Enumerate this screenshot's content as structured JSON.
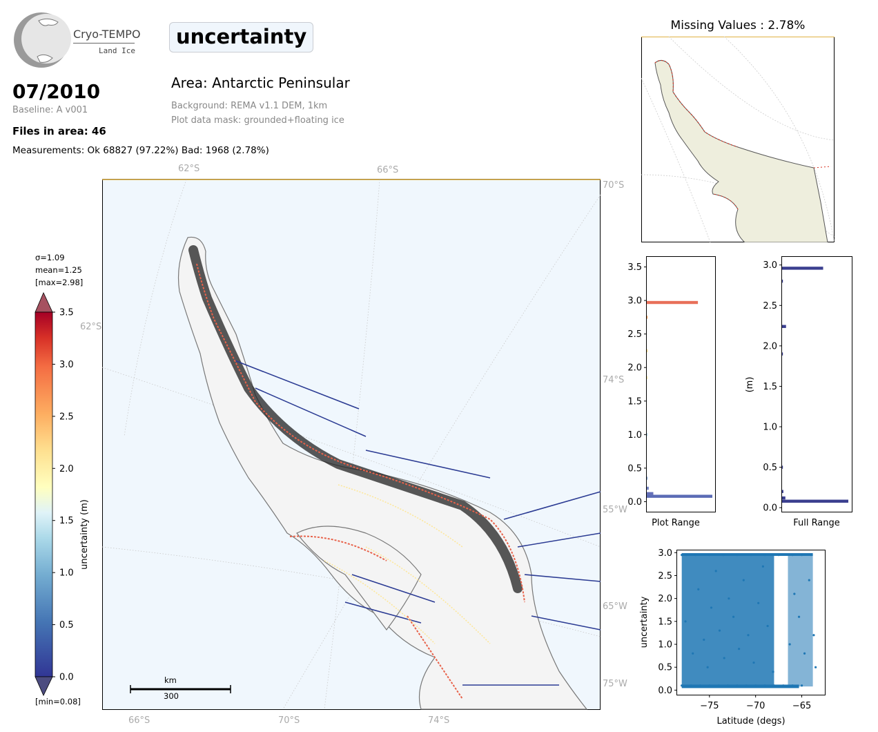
{
  "logo": {
    "name": "Cryo-TEMPO",
    "sub": "Land Ice"
  },
  "header": {
    "variable": "uncertainty",
    "date": "07/2010",
    "baseline": "Baseline: A v001",
    "files": "Files in area: 46",
    "measurements": "Measurements: Ok 68827 (97.22%) Bad: 1968 (2.78%)",
    "area": "Area: Antarctic Peninsular",
    "background": "Background: REMA v1.1 DEM, 1km",
    "mask": "Plot data mask: grounded+floating ice"
  },
  "inset": {
    "title": "Missing Values : 2.78%"
  },
  "main_map": {
    "gridlabels": [
      "62°S",
      "66°S",
      "70°S",
      "62°S",
      "74°S",
      "55°W",
      "65°W",
      "75°W",
      "66°S",
      "70°S",
      "74°S"
    ],
    "scalebar": {
      "unit": "km",
      "value": "300"
    }
  },
  "colorbar": {
    "label": "uncertainty (m)",
    "sigma": "σ=1.09",
    "mean": "mean=1.25",
    "max": "[max=2.98]",
    "min": "[min=0.08]",
    "ticks": [
      "0.0",
      "0.5",
      "1.0",
      "1.5",
      "2.0",
      "2.5",
      "3.0",
      "3.5"
    ]
  },
  "colors": {
    "accent_red": "#d7301f",
    "track_blue": "#2b3b93",
    "scatter_blue": "#1f77b4",
    "land": "#eeeedd",
    "ocean": "#f0f7fd"
  },
  "chart_data": [
    {
      "type": "bar",
      "orientation": "horizontal",
      "title": "",
      "xlabel": "Plot Range",
      "ylabel": "",
      "ylim": [
        -0.15,
        3.65
      ],
      "yticks": [
        "0.0",
        "0.5",
        "1.0",
        "1.5",
        "2.0",
        "2.5",
        "3.0",
        "3.5"
      ],
      "bins": [
        {
          "y": 0.08,
          "count": 100,
          "color": "#5b6bb5"
        },
        {
          "y": 0.12,
          "count": 10,
          "color": "#6570b8"
        },
        {
          "y": 0.2,
          "count": 3,
          "color": "#7080c0"
        },
        {
          "y": 0.35,
          "count": 1,
          "color": "#8aa8d4"
        },
        {
          "y": 1.0,
          "count": 0.5,
          "color": "#b7d9ea"
        },
        {
          "y": 1.85,
          "count": 0.4,
          "color": "#fbe9a8"
        },
        {
          "y": 2.25,
          "count": 0.4,
          "color": "#fcd989"
        },
        {
          "y": 2.75,
          "count": 0.4,
          "color": "#f3a25e"
        },
        {
          "y": 2.97,
          "count": 78,
          "color": "#e8705a"
        }
      ]
    },
    {
      "type": "bar",
      "orientation": "horizontal",
      "title": "",
      "xlabel": "Full Range",
      "ylabel": "(m)",
      "ylim": [
        -0.05,
        3.1
      ],
      "yticks": [
        "0.0",
        "0.5",
        "1.0",
        "1.5",
        "2.0",
        "2.5",
        "3.0"
      ],
      "bins": [
        {
          "y": 0.08,
          "count": 100
        },
        {
          "y": 0.12,
          "count": 5
        },
        {
          "y": 0.2,
          "count": 2
        },
        {
          "y": 0.5,
          "count": 1
        },
        {
          "y": 1.9,
          "count": 1
        },
        {
          "y": 2.24,
          "count": 6
        },
        {
          "y": 2.8,
          "count": 1
        },
        {
          "y": 2.96,
          "count": 62
        }
      ]
    },
    {
      "type": "scatter",
      "title": "",
      "xlabel": "Latitude (degs)",
      "ylabel": "uncertainty",
      "xlim": [
        -78.5,
        -62.5
      ],
      "ylim": [
        -0.1,
        3.05
      ],
      "xticks": [
        "−75",
        "−70",
        "−65"
      ],
      "yticks": [
        "0.0",
        "0.5",
        "1.0",
        "1.5",
        "2.0",
        "2.5",
        "3.0"
      ],
      "series": [
        {
          "points": [
            [
              -78.0,
              2.95
            ],
            [
              -77.5,
              2.95
            ],
            [
              -76.5,
              2.95
            ],
            [
              -75.0,
              2.95
            ],
            [
              -73.5,
              2.95
            ],
            [
              -72.0,
              2.95
            ],
            [
              -70.5,
              2.95
            ],
            [
              -69.0,
              2.95
            ],
            [
              -67.5,
              2.95
            ],
            [
              -66.0,
              2.95
            ],
            [
              -65.0,
              2.95
            ],
            [
              -64.0,
              2.95
            ],
            [
              -78.0,
              0.1
            ],
            [
              -77.0,
              0.1
            ],
            [
              -76.0,
              0.1
            ],
            [
              -75.0,
              0.1
            ],
            [
              -74.0,
              0.1
            ],
            [
              -73.0,
              0.1
            ],
            [
              -72.0,
              0.1
            ],
            [
              -71.0,
              0.1
            ],
            [
              -70.0,
              0.1
            ],
            [
              -69.0,
              0.1
            ],
            [
              -68.0,
              0.1
            ],
            [
              -67.0,
              0.1
            ],
            [
              -66.0,
              0.1
            ],
            [
              -65.0,
              0.1
            ],
            [
              -77.6,
              1.5
            ],
            [
              -76.8,
              0.8
            ],
            [
              -76.2,
              2.2
            ],
            [
              -75.6,
              1.1
            ],
            [
              -75.2,
              0.5
            ],
            [
              -74.8,
              1.8
            ],
            [
              -74.3,
              2.6
            ],
            [
              -73.9,
              1.3
            ],
            [
              -73.4,
              0.7
            ],
            [
              -72.9,
              2.0
            ],
            [
              -72.4,
              1.6
            ],
            [
              -71.8,
              0.9
            ],
            [
              -71.3,
              2.4
            ],
            [
              -70.8,
              1.2
            ],
            [
              -70.2,
              0.6
            ],
            [
              -69.7,
              1.9
            ],
            [
              -69.2,
              2.7
            ],
            [
              -68.7,
              1.4
            ],
            [
              -68.1,
              0.4
            ],
            [
              -66.3,
              1.0
            ],
            [
              -65.8,
              2.1
            ],
            [
              -65.3,
              1.6
            ],
            [
              -64.7,
              0.8
            ],
            [
              -64.2,
              2.4
            ],
            [
              -63.7,
              1.2
            ],
            [
              -63.5,
              0.5
            ]
          ]
        }
      ]
    }
  ]
}
